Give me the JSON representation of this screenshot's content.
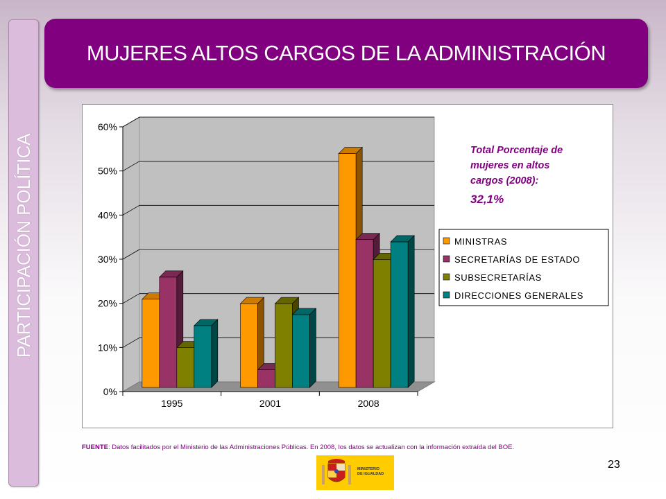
{
  "sidebar": {
    "label": "PARTICIPACIÓN POLÍTICA"
  },
  "header": {
    "title": "MUJERES ALTOS CARGOS DE LA ADMINISTRACIÓN"
  },
  "annotation": {
    "text": "Total Porcentaje de mujeres en altos cargos (2008):",
    "value": "32,1%"
  },
  "source": {
    "label": "FUENTE",
    "text": ": Datos facilitados por el Ministerio de las  Administraciones Públicas. En 2008, los datos se actualizan con la información extraída del BOE."
  },
  "page_number": "23",
  "logo": {
    "line1": "MINISTERIO",
    "line2": "DE IGUALDAD"
  },
  "chart_data": {
    "type": "bar",
    "categories": [
      "1995",
      "2001",
      "2008"
    ],
    "series": [
      {
        "name": "MINISTRAS",
        "values": [
          20,
          19,
          53
        ],
        "color": "#ff9900"
      },
      {
        "name": "SECRETARÍAS DE ESTADO",
        "values": [
          25,
          4,
          33.5
        ],
        "color": "#993366"
      },
      {
        "name": "SUBSECRETARÍAS",
        "values": [
          9,
          19,
          29
        ],
        "color": "#808000"
      },
      {
        "name": "DIRECCIONES GENERALES",
        "values": [
          14,
          16.5,
          33
        ],
        "color": "#008080"
      }
    ],
    "yticks": [
      "0%",
      "10%",
      "20%",
      "30%",
      "40%",
      "50%",
      "60%"
    ],
    "ylim": [
      0,
      60
    ],
    "grid": true,
    "legend": "right"
  }
}
